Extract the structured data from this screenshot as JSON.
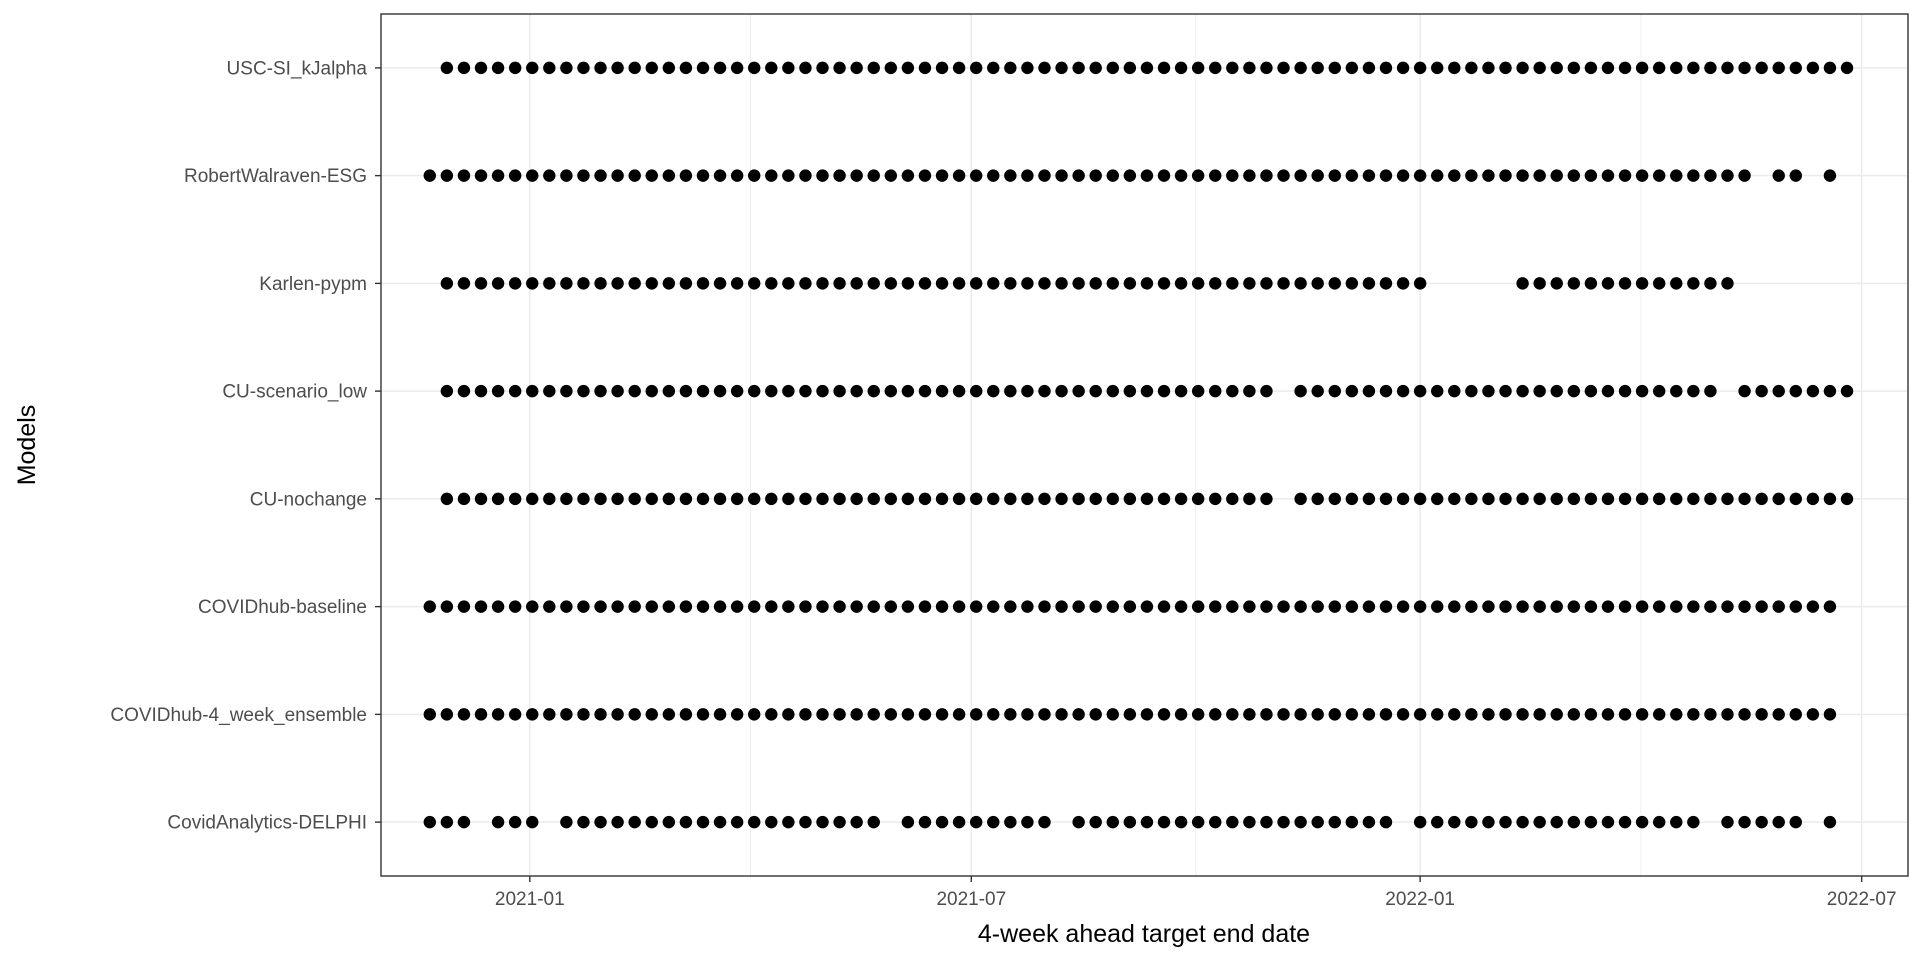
{
  "chart_data": {
    "type": "scatter",
    "xlabel": "4-week ahead target end date",
    "ylabel": "Models",
    "x_axis_kind": "date",
    "xlim": [
      "2020-11-01",
      "2022-07-20"
    ],
    "x_ticks": [
      "2021-01-01",
      "2021-07-01",
      "2022-01-01",
      "2022-07-01"
    ],
    "x_tick_labels": [
      "2021-01",
      "2021-07",
      "2022-01",
      "2022-07"
    ],
    "grid": true,
    "point_color": "#000000",
    "series": [
      {
        "name": "USC-SI_kJalpha",
        "start": "2020-11-28",
        "end": "2022-06-25",
        "missing": []
      },
      {
        "name": "RobertWalraven-ESG",
        "start": "2020-11-21",
        "end": "2022-06-18",
        "missing": [
          "2022-05-21",
          "2022-06-11"
        ]
      },
      {
        "name": "Karlen-pypm",
        "start": "2020-11-28",
        "end": "2022-01-01",
        "extra_ranges": [
          [
            "2022-02-12",
            "2022-05-07"
          ]
        ],
        "missing": []
      },
      {
        "name": "CU-scenario_low",
        "start": "2020-11-28",
        "end": "2022-06-25",
        "missing": [
          "2021-11-06",
          "2022-05-07"
        ]
      },
      {
        "name": "CU-nochange",
        "start": "2020-11-28",
        "end": "2022-06-25",
        "missing": [
          "2021-11-06"
        ]
      },
      {
        "name": "COVIDhub-baseline",
        "start": "2020-11-21",
        "end": "2022-06-18",
        "missing": []
      },
      {
        "name": "COVIDhub-4_week_ensemble",
        "start": "2020-11-21",
        "end": "2022-06-18",
        "missing": []
      },
      {
        "name": "CovidAnalytics-DELPHI",
        "start": "2020-11-21",
        "end": "2022-06-18",
        "missing": [
          "2020-12-12",
          "2021-01-09",
          "2021-05-29",
          "2021-08-07",
          "2021-12-25",
          "2022-04-30",
          "2022-06-11"
        ]
      }
    ]
  }
}
